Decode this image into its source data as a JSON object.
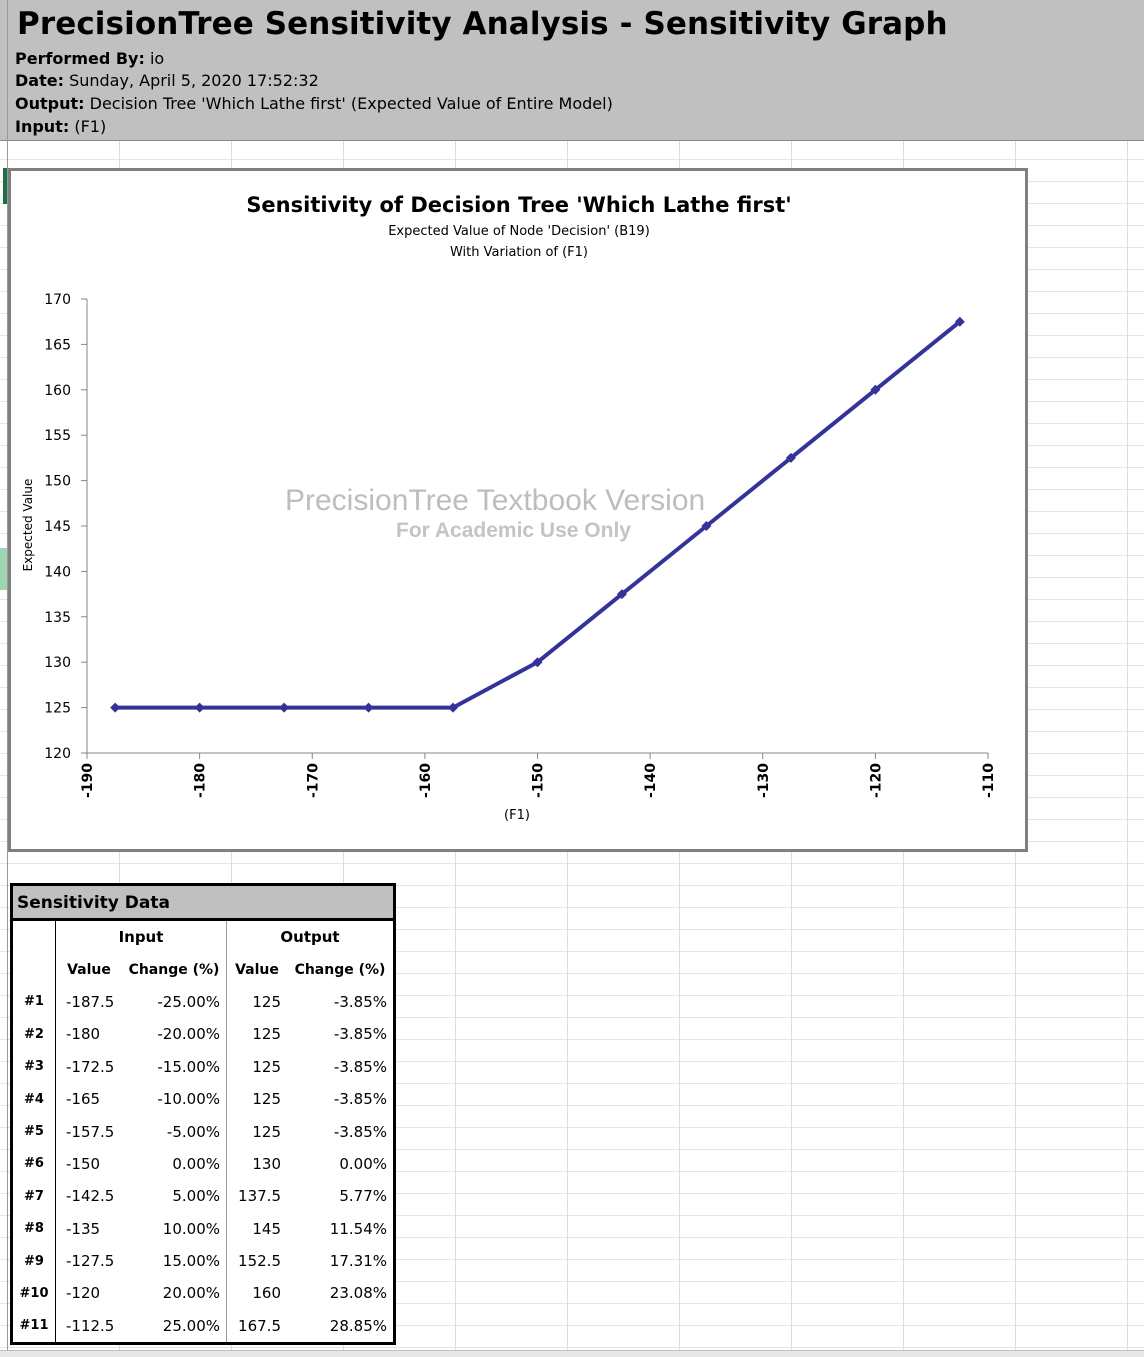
{
  "report": {
    "title": "PrecisionTree Sensitivity Analysis - Sensitivity Graph",
    "performed_by_label": "Performed By:",
    "performed_by_value": "io",
    "date_label": "Date:",
    "date_value": "Sunday, April 5, 2020 17:52:32",
    "output_label": "Output:",
    "output_value": "Decision Tree 'Which Lathe first' (Expected Value of Entire Model)",
    "input_label": "Input:",
    "input_value": "(F1)"
  },
  "watermark": {
    "line1": "PrecisionTree Textbook Version",
    "line2": "For Academic Use Only"
  },
  "chart_data": {
    "type": "line",
    "title": "Sensitivity of Decision Tree 'Which Lathe first'",
    "subtitle_lines": [
      "Expected Value of Node 'Decision' (B19)",
      "With Variation of (F1)"
    ],
    "xlabel": "(F1)",
    "ylabel": "Expected Value",
    "xlim": [
      -190,
      -110
    ],
    "ylim": [
      120,
      170
    ],
    "x_ticks": [
      "-190",
      "-180",
      "-170",
      "-160",
      "-150",
      "-140",
      "-130",
      "-120",
      "-110"
    ],
    "y_ticks": [
      "120",
      "125",
      "130",
      "135",
      "140",
      "145",
      "150",
      "155",
      "160",
      "165",
      "170"
    ],
    "grid": false,
    "legend": "none",
    "series": [
      {
        "color": "#333399",
        "x": [
          -187.5,
          -180,
          -172.5,
          -165,
          -157.5,
          -150,
          -142.5,
          -135,
          -127.5,
          -120,
          -112.5
        ],
        "y": [
          125,
          125,
          125,
          125,
          125,
          130,
          137.5,
          145,
          152.5,
          160,
          167.5
        ]
      }
    ]
  },
  "table": {
    "title": "Sensitivity Data",
    "group_input": "Input",
    "group_output": "Output",
    "col_value": "Value",
    "col_change": "Change (%)",
    "rows": [
      {
        "id": "#1",
        "in_value": "-187.5",
        "in_change": "-25.00%",
        "out_value": "125",
        "out_change": "-3.85%"
      },
      {
        "id": "#2",
        "in_value": "-180",
        "in_change": "-20.00%",
        "out_value": "125",
        "out_change": "-3.85%"
      },
      {
        "id": "#3",
        "in_value": "-172.5",
        "in_change": "-15.00%",
        "out_value": "125",
        "out_change": "-3.85%"
      },
      {
        "id": "#4",
        "in_value": "-165",
        "in_change": "-10.00%",
        "out_value": "125",
        "out_change": "-3.85%"
      },
      {
        "id": "#5",
        "in_value": "-157.5",
        "in_change": "-5.00%",
        "out_value": "125",
        "out_change": "-3.85%"
      },
      {
        "id": "#6",
        "in_value": "-150",
        "in_change": "0.00%",
        "out_value": "130",
        "out_change": "0.00%"
      },
      {
        "id": "#7",
        "in_value": "-142.5",
        "in_change": "5.00%",
        "out_value": "137.5",
        "out_change": "5.77%"
      },
      {
        "id": "#8",
        "in_value": "-135",
        "in_change": "10.00%",
        "out_value": "145",
        "out_change": "11.54%"
      },
      {
        "id": "#9",
        "in_value": "-127.5",
        "in_change": "15.00%",
        "out_value": "152.5",
        "out_change": "17.31%"
      },
      {
        "id": "#10",
        "in_value": "-120",
        "in_change": "20.00%",
        "out_value": "160",
        "out_change": "23.08%"
      },
      {
        "id": "#11",
        "in_value": "-112.5",
        "in_change": "25.00%",
        "out_value": "167.5",
        "out_change": "28.85%"
      }
    ]
  }
}
